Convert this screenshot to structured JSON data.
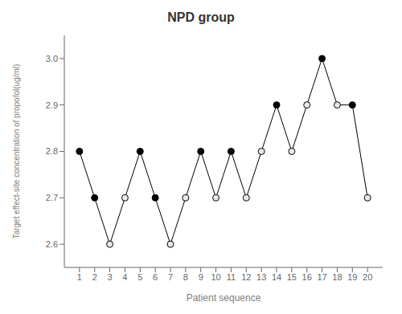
{
  "chart_data": {
    "type": "line",
    "title": "NPD group",
    "xlabel": "Patient sequence",
    "ylabel": "Target effect-site concentration of propofol(ug/ml)",
    "x": [
      1,
      2,
      3,
      4,
      5,
      6,
      7,
      8,
      9,
      10,
      11,
      12,
      13,
      14,
      15,
      16,
      17,
      18,
      19,
      20
    ],
    "values": [
      2.8,
      2.7,
      2.6,
      2.7,
      2.8,
      2.7,
      2.6,
      2.7,
      2.8,
      2.7,
      2.8,
      2.7,
      2.8,
      2.9,
      2.8,
      2.9,
      3.0,
      2.9,
      2.9,
      2.7
    ],
    "color": "black",
    "colors": [
      "black",
      "black",
      "#e8e8e8",
      "#e8e8e8",
      "black",
      "black",
      "#e8e8e8",
      "#e8e8e8",
      "black",
      "#e8e8e8",
      "black",
      "#e8e8e8",
      "#e8e8e8",
      "black",
      "#e8e8e8",
      "#e8e8e8",
      "black",
      "#e8e8e8",
      "black",
      "#e8e8e8"
    ],
    "marker": "circle",
    "xlim": [
      0.0,
      21.0
    ],
    "xticks": [
      1,
      2,
      3,
      4,
      5,
      6,
      7,
      8,
      9,
      10,
      11,
      12,
      13,
      14,
      15,
      16,
      17,
      18,
      19,
      20
    ],
    "ylim": [
      2.55,
      3.05
    ],
    "yticks": [
      2.6,
      2.7,
      2.8,
      2.9,
      {
        "value": 3.0,
        "label": "3.0"
      }
    ],
    "grid": false
  }
}
